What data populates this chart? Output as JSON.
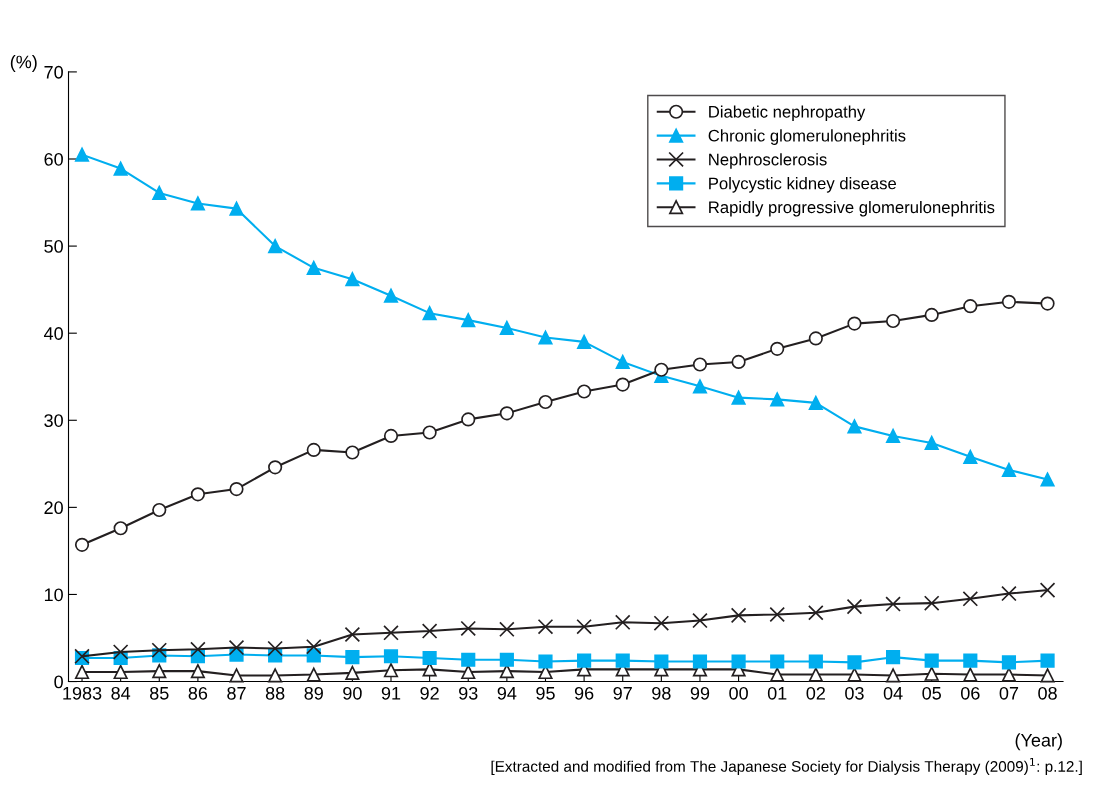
{
  "chart_data": {
    "type": "line",
    "ylabel": "(%)",
    "xlabel": "(Year)",
    "categories": [
      "1983",
      "84",
      "85",
      "86",
      "87",
      "88",
      "89",
      "90",
      "91",
      "92",
      "93",
      "94",
      "95",
      "96",
      "97",
      "98",
      "99",
      "00",
      "01",
      "02",
      "03",
      "04",
      "05",
      "06",
      "07",
      "08"
    ],
    "series": [
      {
        "name": "Diabetic nephropathy",
        "color": "#231f20",
        "marker": "circle",
        "values": [
          15.7,
          17.6,
          19.7,
          21.5,
          22.1,
          24.6,
          26.6,
          26.3,
          28.2,
          28.6,
          30.1,
          30.8,
          32.1,
          33.3,
          34.1,
          35.8,
          36.4,
          36.7,
          38.2,
          39.4,
          41.1,
          41.4,
          42.1,
          43.1,
          43.6,
          43.4
        ]
      },
      {
        "name": "Chronic glomerulonephritis",
        "color": "#00aeef",
        "marker": "triangle",
        "values": [
          60.5,
          58.9,
          56.1,
          54.9,
          54.3,
          50.0,
          47.5,
          46.2,
          44.3,
          42.3,
          41.5,
          40.6,
          39.5,
          39.0,
          36.7,
          35.1,
          33.9,
          32.6,
          32.4,
          32.0,
          29.3,
          28.2,
          27.4,
          25.8,
          24.3,
          23.2
        ]
      },
      {
        "name": "Nephrosclerosis",
        "color": "#231f20",
        "marker": "cross",
        "values": [
          2.9,
          3.4,
          3.6,
          3.7,
          3.9,
          3.8,
          4.0,
          5.4,
          5.6,
          5.8,
          6.1,
          6.0,
          6.3,
          6.3,
          6.8,
          6.7,
          7.0,
          7.6,
          7.7,
          7.9,
          8.6,
          8.9,
          9.0,
          9.5,
          10.1,
          10.5
        ]
      },
      {
        "name": "Polycystic kidney disease",
        "color": "#00aeef",
        "marker": "square",
        "values": [
          2.7,
          2.7,
          3.0,
          2.9,
          3.1,
          3.0,
          3.0,
          2.8,
          2.9,
          2.7,
          2.5,
          2.5,
          2.3,
          2.4,
          2.4,
          2.3,
          2.3,
          2.3,
          2.3,
          2.3,
          2.2,
          2.8,
          2.4,
          2.4,
          2.2,
          2.4
        ]
      },
      {
        "name": "Rapidly progressive glomerulonephritis",
        "color": "#231f20",
        "marker": "triangle",
        "values": [
          1.1,
          1.1,
          1.2,
          1.2,
          0.7,
          0.7,
          0.8,
          1.0,
          1.3,
          1.4,
          1.1,
          1.2,
          1.1,
          1.4,
          1.4,
          1.4,
          1.4,
          1.4,
          0.8,
          0.8,
          0.8,
          0.7,
          0.9,
          0.8,
          0.8,
          0.7
        ]
      }
    ],
    "ylim": [
      0,
      70
    ],
    "yticks": [
      0,
      10,
      20,
      30,
      40,
      50,
      60,
      70
    ],
    "grid": false,
    "legend": "top right",
    "line_style": "solid",
    "annotations": [
      "[Extracted and modified from The Japanese Society for Dialysis Therapy (2009)$^{1}$: p.12.]"
    ]
  }
}
